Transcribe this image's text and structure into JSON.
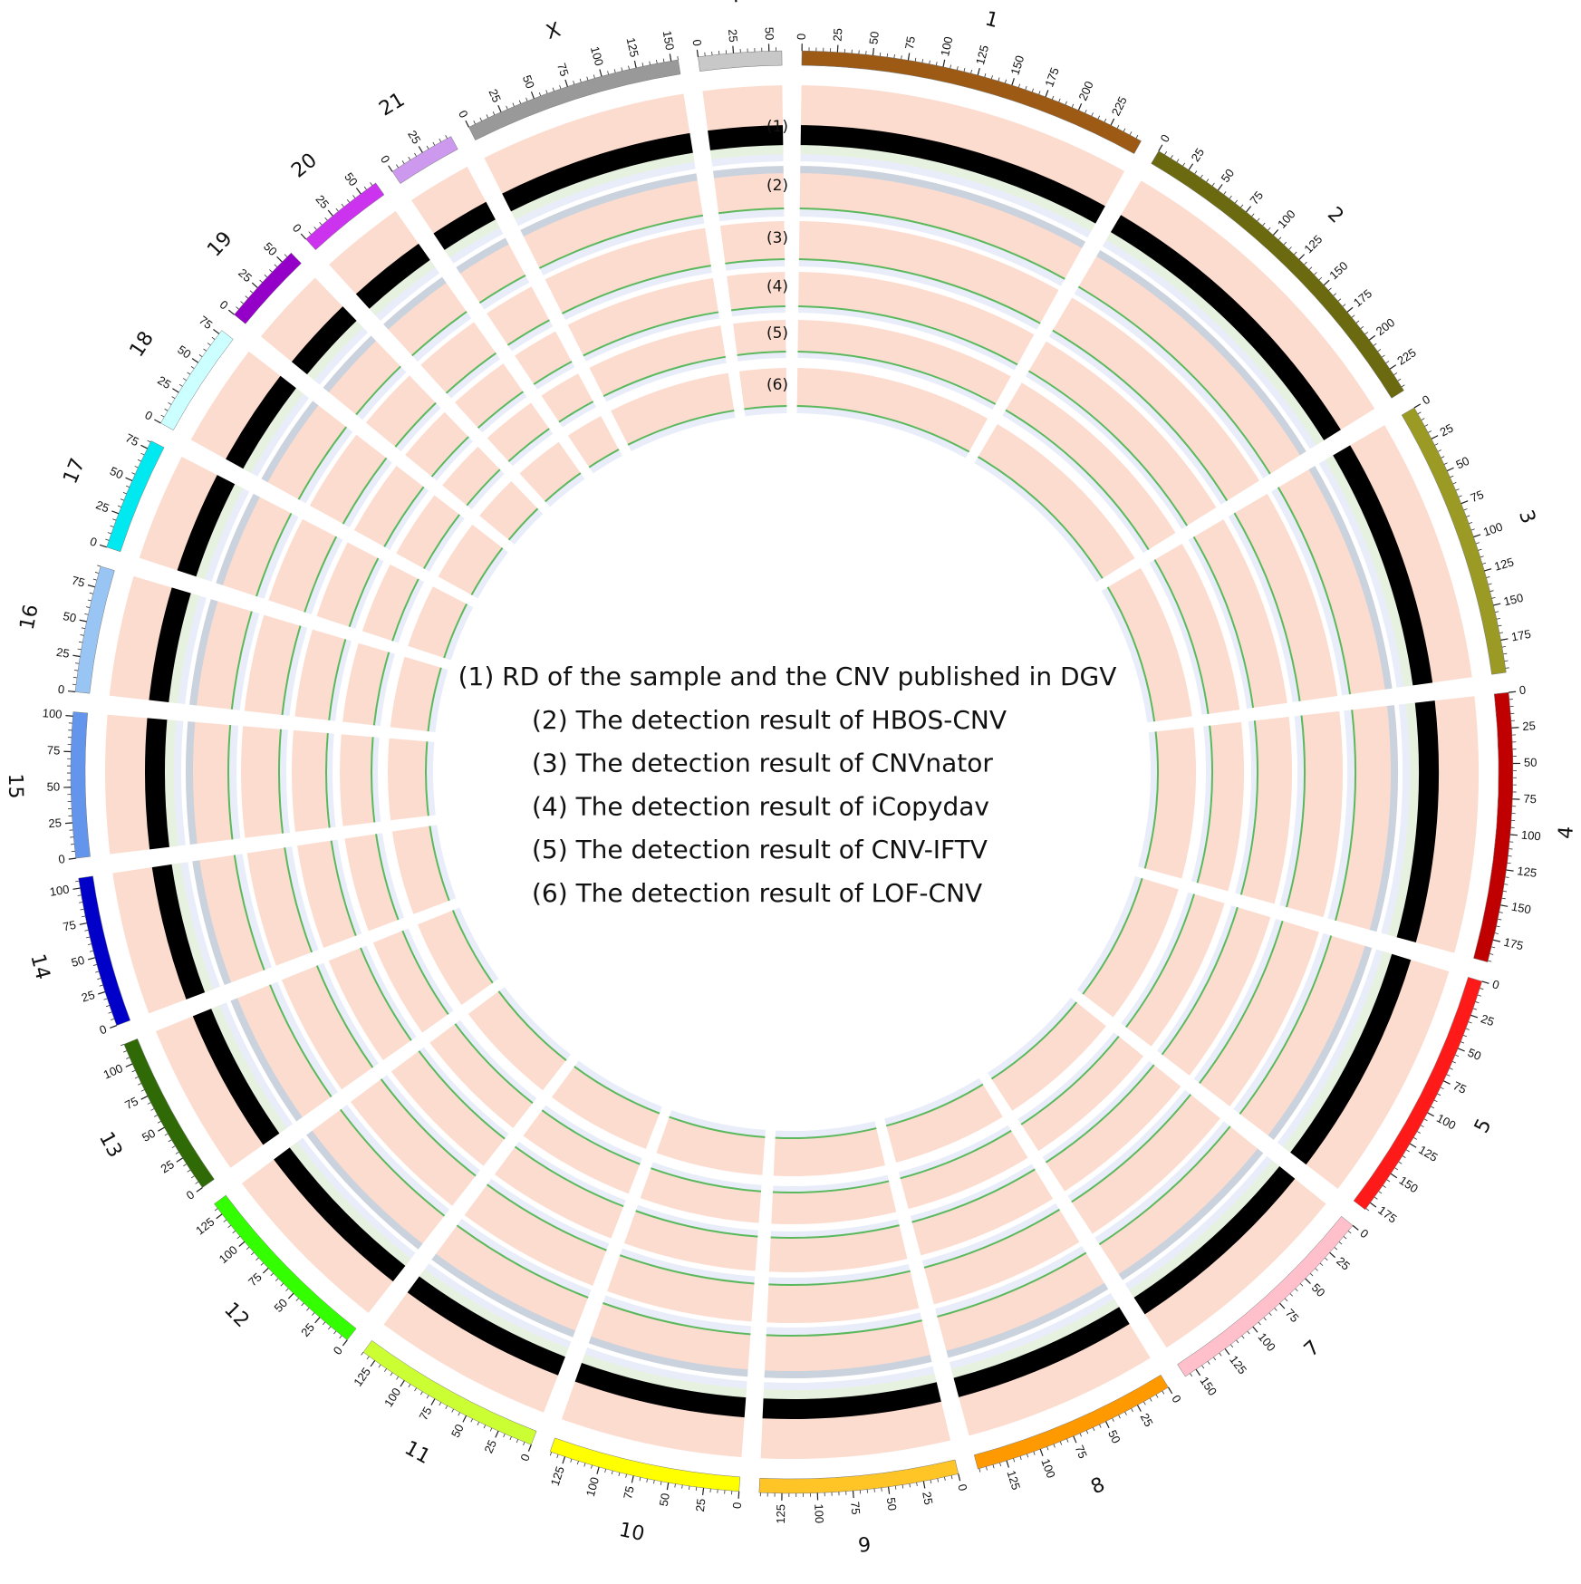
{
  "chart_data": {
    "type": "circos",
    "minor_tick_step": 5,
    "chromosomes": [
      {
        "name": "1",
        "length": 249,
        "color": "#9c5a14",
        "ticks": [
          0,
          25,
          50,
          75,
          100,
          125,
          150,
          175,
          200,
          225
        ]
      },
      {
        "name": "2",
        "length": 243,
        "color": "#6b6a10",
        "ticks": [
          0,
          25,
          50,
          75,
          100,
          125,
          150,
          175,
          200,
          225
        ]
      },
      {
        "name": "3",
        "length": 198,
        "color": "#9b9a25",
        "ticks": [
          0,
          25,
          50,
          75,
          100,
          125,
          150,
          175
        ]
      },
      {
        "name": "4",
        "length": 191,
        "color": "#c00000",
        "ticks": [
          0,
          25,
          50,
          75,
          100,
          125,
          150,
          175
        ]
      },
      {
        "name": "5",
        "length": 181,
        "color": "#ff1a1a",
        "ticks": [
          0,
          25,
          50,
          75,
          100,
          125,
          150,
          175
        ]
      },
      {
        "name": "7",
        "length": 159,
        "color": "#ffc0cb",
        "ticks": [
          0,
          25,
          50,
          75,
          100,
          125,
          150
        ]
      },
      {
        "name": "8",
        "length": 146,
        "color": "#ff9900",
        "ticks": [
          0,
          25,
          50,
          75,
          100,
          125
        ]
      },
      {
        "name": "9",
        "length": 141,
        "color": "#ffc425",
        "ticks": [
          0,
          25,
          50,
          75,
          100,
          125
        ]
      },
      {
        "name": "10",
        "length": 136,
        "color": "#ffff00",
        "ticks": [
          0,
          25,
          50,
          75,
          100,
          125
        ]
      },
      {
        "name": "11",
        "length": 135,
        "color": "#ccff33",
        "ticks": [
          0,
          25,
          50,
          75,
          100,
          125
        ]
      },
      {
        "name": "12",
        "length": 134,
        "color": "#33ff00",
        "ticks": [
          0,
          25,
          50,
          75,
          100,
          125
        ]
      },
      {
        "name": "13",
        "length": 115,
        "color": "#2f6a06",
        "ticks": [
          0,
          25,
          50,
          75,
          100
        ]
      },
      {
        "name": "14",
        "length": 107,
        "color": "#0000c8",
        "ticks": [
          0,
          25,
          50,
          75,
          100
        ]
      },
      {
        "name": "15",
        "length": 103,
        "color": "#6495ed",
        "ticks": [
          0,
          25,
          50,
          75,
          100
        ]
      },
      {
        "name": "16",
        "length": 90,
        "color": "#99c5f5",
        "ticks": [
          0,
          25,
          50,
          75
        ]
      },
      {
        "name": "17",
        "length": 81,
        "color": "#00e8f0",
        "ticks": [
          0,
          25,
          50,
          75
        ]
      },
      {
        "name": "18",
        "length": 78,
        "color": "#ccffff",
        "ticks": [
          0,
          25,
          50,
          75
        ]
      },
      {
        "name": "19",
        "length": 59,
        "color": "#9400c8",
        "ticks": [
          0,
          25,
          50
        ]
      },
      {
        "name": "20",
        "length": 63,
        "color": "#cc33ee",
        "ticks": [
          0,
          25,
          50
        ]
      },
      {
        "name": "21",
        "length": 48,
        "color": "#cc99ee",
        "ticks": [
          0,
          25
        ]
      },
      {
        "name": "X",
        "length": 155,
        "color": "#999999",
        "ticks": [
          0,
          25,
          50,
          75,
          100,
          125,
          150
        ]
      },
      {
        "name": "Y",
        "length": 59,
        "color": "#c8c8c8",
        "ticks": [
          0,
          25,
          50
        ]
      }
    ],
    "track_labels": [
      "(1)",
      "(2)",
      "(3)",
      "(4)",
      "(5)",
      "(6)"
    ],
    "legend": [
      "(1) RD of the sample and the CNV published in DGV",
      "(2) The detection result of HBOS-CNV",
      "(3) The detection result of CNVnator",
      "(4) The detection result of iCopydav",
      "(5) The detection result of CNV-IFTV",
      "(6) The detection result of LOF-CNV"
    ]
  }
}
